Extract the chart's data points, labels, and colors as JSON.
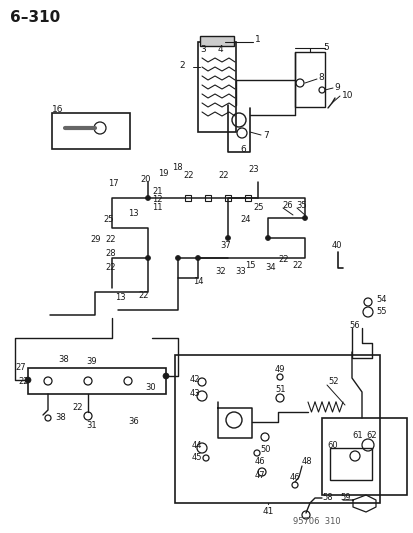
{
  "title": "6–310",
  "watermark": "95706  310",
  "background_color": "#ffffff",
  "line_color": "#1a1a1a",
  "text_color": "#1a1a1a",
  "fig_width": 4.14,
  "fig_height": 5.33,
  "dpi": 100
}
